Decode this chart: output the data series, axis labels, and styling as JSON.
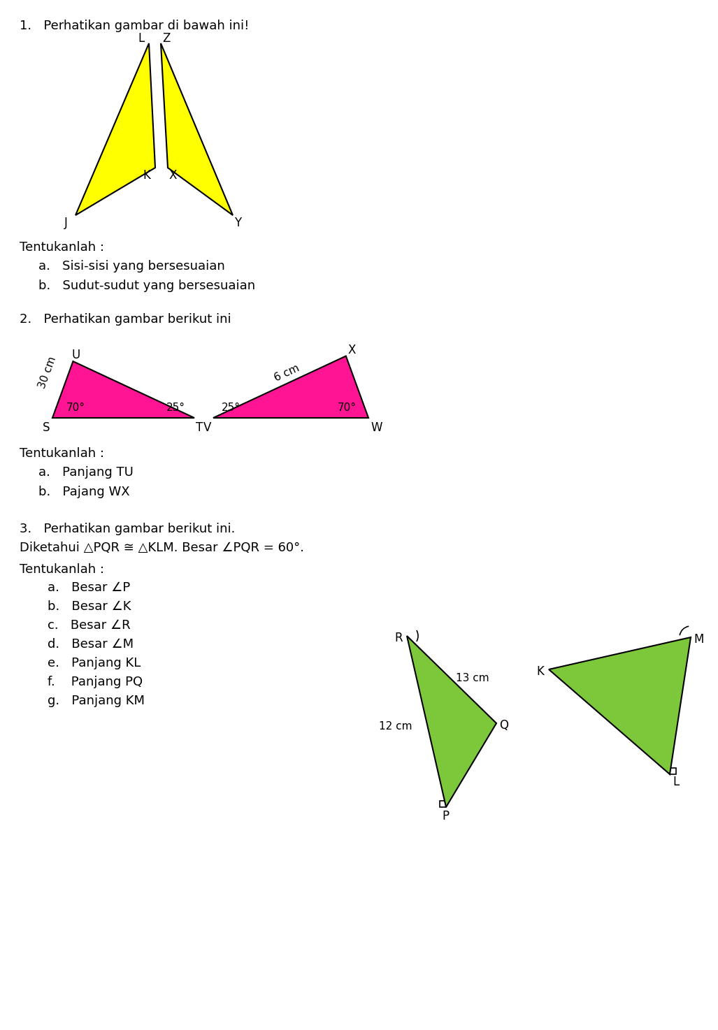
{
  "bg_color": "#ffffff",
  "title_fontsize": 13,
  "label_fontsize": 12,
  "q1_header": "1.   Perhatikan gambar di bawah ini!",
  "q1_sub_header": "Tentukanlah :",
  "q1_a": "a.   Sisi-sisi yang bersesuaian",
  "q1_b": "b.   Sudut-sudut yang bersesuaian",
  "q2_header": "2.   Perhatikan gambar berikut ini",
  "q2_sub_header": "Tentukanlah :",
  "q2_a": "a.   Panjang TU",
  "q2_b": "b.   Pajang WX",
  "q3_header": "3.   Perhatikan gambar berikut ini.",
  "q3_given": "Diketahui △PQR ≅ △KLM. Besar ∠PQR = 60°.",
  "q3_sub_header": "Tentukanlah :",
  "q3_a": "a.   Besar ∠P",
  "q3_b": "b.   Besar ∠K",
  "q3_c": "c.   Besar ∠R",
  "q3_d": "d.   Besar ∠M",
  "q3_e": "e.   Panjang KL",
  "q3_f": "f.    Panjang PQ",
  "q3_g": "g.   Panjang KM",
  "yellow": "#FFFF00",
  "pink": "#FF1493",
  "green": "#7DC83A",
  "black": "#000000"
}
